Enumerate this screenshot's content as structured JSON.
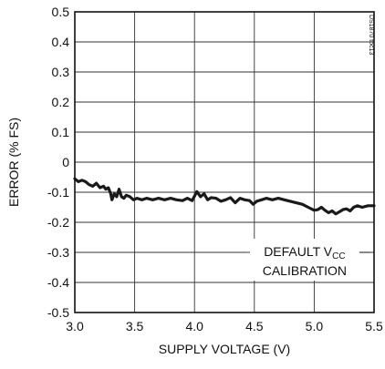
{
  "chart_data": {
    "type": "line",
    "title": "",
    "xlabel": "SUPPLY VOLTAGE (V)",
    "ylabel": "ERROR (% FS)",
    "xlim": [
      3.0,
      5.5
    ],
    "ylim": [
      -0.5,
      0.5
    ],
    "x_ticks": [
      3.0,
      3.5,
      4.0,
      4.5,
      5.0,
      5.5
    ],
    "x_tick_labels": [
      "3.0",
      "3.5",
      "4.0",
      "4.5",
      "5.0",
      "5.5"
    ],
    "y_ticks": [
      0.5,
      0.4,
      0.3,
      0.2,
      0.1,
      0,
      -0.1,
      -0.2,
      -0.3,
      -0.4,
      -0.5
    ],
    "y_tick_labels": [
      "0.5",
      "0.4",
      "0.3",
      "0.2",
      "0.1",
      "0",
      "-0.1",
      "-0.2",
      "-0.3",
      "-0.4",
      "-0.5"
    ],
    "grid": true,
    "series_color": "#1a1a1a",
    "series": [
      {
        "x": [
          3.0,
          3.03,
          3.06,
          3.09,
          3.12,
          3.15,
          3.18,
          3.21,
          3.24,
          3.26,
          3.28,
          3.3,
          3.31,
          3.33,
          3.35,
          3.37,
          3.39,
          3.41,
          3.43,
          3.46,
          3.49,
          3.52,
          3.56,
          3.6,
          3.65,
          3.7,
          3.75,
          3.8,
          3.85,
          3.9,
          3.94,
          3.98,
          4.02,
          4.05,
          4.08,
          4.11,
          4.14,
          4.18,
          4.22,
          4.26,
          4.3,
          4.34,
          4.38,
          4.42,
          4.46,
          4.49,
          4.52,
          4.56,
          4.6,
          4.65,
          4.7,
          4.75,
          4.8,
          4.85,
          4.9,
          4.95,
          5.0,
          5.03,
          5.06,
          5.09,
          5.12,
          5.15,
          5.18,
          5.21,
          5.24,
          5.27,
          5.3,
          5.33,
          5.36,
          5.4,
          5.45,
          5.5
        ],
        "y": [
          -0.055,
          -0.065,
          -0.06,
          -0.065,
          -0.075,
          -0.08,
          -0.07,
          -0.085,
          -0.08,
          -0.09,
          -0.085,
          -0.105,
          -0.125,
          -0.105,
          -0.115,
          -0.09,
          -0.115,
          -0.12,
          -0.11,
          -0.115,
          -0.125,
          -0.12,
          -0.125,
          -0.12,
          -0.125,
          -0.12,
          -0.125,
          -0.12,
          -0.125,
          -0.128,
          -0.12,
          -0.128,
          -0.098,
          -0.115,
          -0.105,
          -0.125,
          -0.118,
          -0.12,
          -0.13,
          -0.125,
          -0.118,
          -0.135,
          -0.12,
          -0.125,
          -0.128,
          -0.14,
          -0.13,
          -0.125,
          -0.12,
          -0.125,
          -0.12,
          -0.125,
          -0.13,
          -0.135,
          -0.14,
          -0.15,
          -0.16,
          -0.158,
          -0.15,
          -0.16,
          -0.168,
          -0.162,
          -0.172,
          -0.165,
          -0.158,
          -0.155,
          -0.162,
          -0.15,
          -0.145,
          -0.15,
          -0.145,
          -0.145
        ]
      }
    ],
    "annotation": {
      "line1_prefix": "DEFAULT V",
      "line1_subscript": "CC",
      "line2": "CALIBRATION"
    },
    "figure_ref": "DS1870 toc13"
  }
}
